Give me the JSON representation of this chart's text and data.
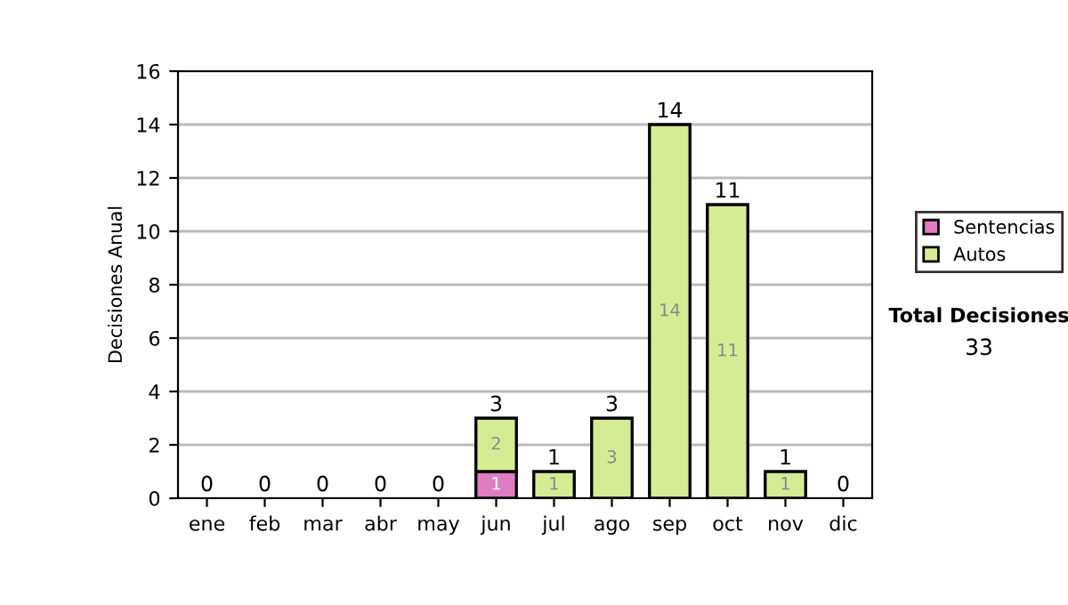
{
  "chart_data": {
    "type": "bar",
    "stacked": true,
    "ylabel": "Decisiones Anual",
    "categories": [
      "ene",
      "feb",
      "mar",
      "abr",
      "may",
      "jun",
      "jul",
      "ago",
      "sep",
      "oct",
      "nov",
      "dic"
    ],
    "series": [
      {
        "name": "Sentencias",
        "color": "#e07cc4",
        "values": [
          0,
          0,
          0,
          0,
          0,
          1,
          0,
          0,
          0,
          0,
          0,
          0
        ],
        "value_labels": [
          null,
          null,
          null,
          null,
          null,
          "1",
          null,
          null,
          null,
          null,
          null,
          null
        ]
      },
      {
        "name": "Autos",
        "color": "#d5ec94",
        "values": [
          0,
          0,
          0,
          0,
          0,
          2,
          1,
          3,
          14,
          11,
          1,
          0
        ],
        "value_labels": [
          null,
          null,
          null,
          null,
          null,
          "2",
          "1",
          "3",
          "14",
          "11",
          "1",
          null
        ]
      }
    ],
    "totals": [
      "0",
      "0",
      "0",
      "0",
      "0",
      "3",
      "1",
      "3",
      "14",
      "11",
      "1",
      "0"
    ],
    "ylim": [
      0,
      16
    ],
    "yticks": [
      0,
      2,
      4,
      6,
      8,
      10,
      12,
      14,
      16
    ],
    "grid": "y",
    "legend": "right",
    "annotations": [
      "Total Decisiones",
      "33"
    ]
  }
}
